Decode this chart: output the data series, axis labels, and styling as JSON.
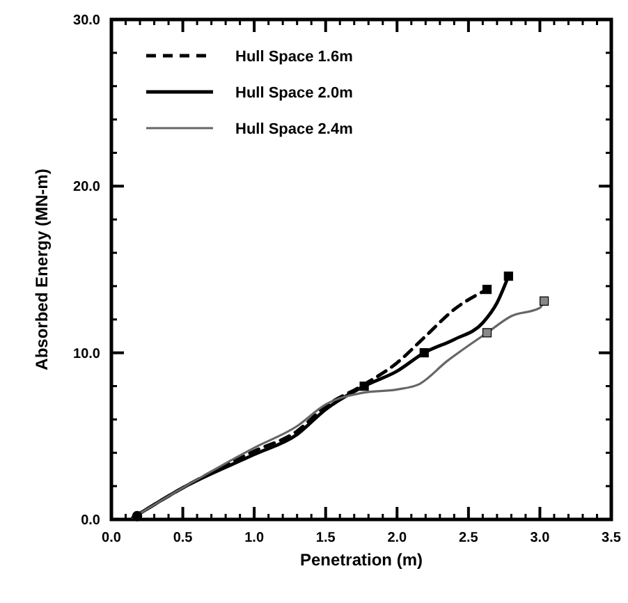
{
  "chart_data": {
    "type": "line",
    "xlabel": "Penetration (m)",
    "ylabel": "Absorbed Energy (MN-m)",
    "xlim": [
      0,
      3.5
    ],
    "ylim": [
      0,
      30
    ],
    "xticks": [
      {
        "value": 0,
        "label": "0.0"
      },
      {
        "value": 0.5,
        "label": "0.5"
      },
      {
        "value": 1,
        "label": "1.0"
      },
      {
        "value": 1.5,
        "label": "1.5"
      },
      {
        "value": 2,
        "label": "2.0"
      },
      {
        "value": 2.5,
        "label": "2.5"
      },
      {
        "value": 3,
        "label": "3.0"
      },
      {
        "value": 3.5,
        "label": "3.5"
      }
    ],
    "yticks": [
      {
        "value": 0,
        "label": "0.0"
      },
      {
        "value": 10,
        "label": "10.0"
      },
      {
        "value": 20,
        "label": "20.0"
      },
      {
        "value": 30,
        "label": "30.0"
      }
    ],
    "grid": false,
    "legend": "top left",
    "series": [
      {
        "name": "Hull Space 1.6m",
        "color": "#000000",
        "line_style": "dashed",
        "x": [
          0.15,
          0.5,
          1.0,
          1.3,
          1.5,
          1.75,
          2.0,
          2.2,
          2.4,
          2.63
        ],
        "values": [
          0.1,
          1.9,
          4.1,
          5.3,
          6.8,
          8.0,
          9.4,
          11.0,
          12.6,
          13.8
        ]
      },
      {
        "name": "Hull Space 2.0m",
        "color": "#000000",
        "line_style": "solid",
        "x": [
          0.15,
          0.5,
          1.0,
          1.3,
          1.5,
          1.77,
          2.0,
          2.19,
          2.4,
          2.6,
          2.7,
          2.78
        ],
        "values": [
          0.1,
          1.9,
          3.9,
          5.1,
          6.6,
          8.0,
          8.9,
          10.0,
          10.8,
          11.8,
          13.0,
          14.6
        ]
      },
      {
        "name": "Hull Space 2.4m",
        "color": "#666666",
        "line_style": "solid",
        "x": [
          0.15,
          0.5,
          1.0,
          1.3,
          1.5,
          1.76,
          2.0,
          2.15,
          2.35,
          2.63,
          2.8,
          3.0,
          3.03
        ],
        "values": [
          0.1,
          1.9,
          4.3,
          5.6,
          6.9,
          7.6,
          7.8,
          8.1,
          9.5,
          11.2,
          12.2,
          12.7,
          13.1
        ]
      },
      {
        "type": "scatter",
        "color": "#000000",
        "marker": "square",
        "x": [
          1.77,
          2.19,
          2.63,
          2.78
        ],
        "values": [
          8.0,
          10.0,
          13.8,
          14.6
        ]
      },
      {
        "type": "scatter",
        "color": "#888888",
        "marker": "square",
        "x": [
          2.63,
          3.03
        ],
        "values": [
          11.2,
          13.1
        ]
      },
      {
        "type": "scatter",
        "color": "#000000",
        "marker": "circle",
        "x": [
          0.18
        ],
        "values": [
          0.2
        ]
      }
    ]
  }
}
